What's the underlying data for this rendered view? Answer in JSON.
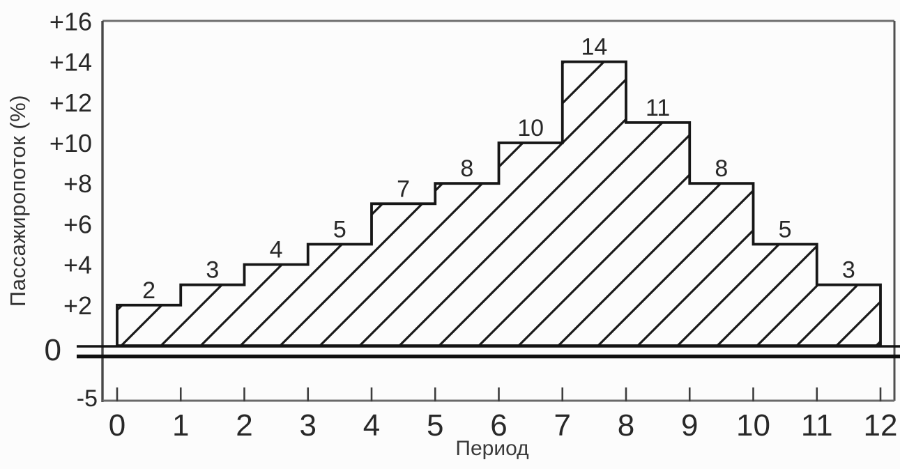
{
  "chart_data": {
    "type": "bar",
    "subtype": "step-histogram with diagonal hatch fill (monochrome scanned figure)",
    "xlabel": "Период",
    "ylabel": "Пассажиропоток (%)",
    "xlim": [
      0,
      12
    ],
    "ylim": [
      -5,
      16
    ],
    "grid": false,
    "legend": false,
    "ink_color": "#1a1a1a",
    "background_color": "#fcfcfc",
    "x_axis": {
      "ticks": [
        "0",
        "1",
        "2",
        "3",
        "4",
        "5",
        "6",
        "7",
        "8",
        "9",
        "10",
        "11",
        "12"
      ]
    },
    "y_axis": {
      "ticks": [
        {
          "label": "+16",
          "value": 16
        },
        {
          "label": "+14",
          "value": 14
        },
        {
          "label": "+12",
          "value": 12
        },
        {
          "label": "+10",
          "value": 10
        },
        {
          "label": "+8",
          "value": 8
        },
        {
          "label": "+6",
          "value": 6
        },
        {
          "label": "+4",
          "value": 4
        },
        {
          "label": "+2",
          "value": 2
        },
        {
          "label": "0",
          "value": 0
        },
        {
          "label": "-5",
          "value": -5
        }
      ]
    },
    "bars": [
      {
        "x_start": 0,
        "x_end": 1,
        "value": 2
      },
      {
        "x_start": 1,
        "x_end": 2,
        "value": 3
      },
      {
        "x_start": 2,
        "x_end": 3,
        "value": 4
      },
      {
        "x_start": 3,
        "x_end": 4,
        "value": 5
      },
      {
        "x_start": 4,
        "x_end": 5,
        "value": 7
      },
      {
        "x_start": 5,
        "x_end": 6,
        "value": 8
      },
      {
        "x_start": 6,
        "x_end": 7,
        "value": 10
      },
      {
        "x_start": 7,
        "x_end": 8,
        "value": 14
      },
      {
        "x_start": 8,
        "x_end": 9,
        "value": 11
      },
      {
        "x_start": 9,
        "x_end": 10,
        "value": 8
      },
      {
        "x_start": 10,
        "x_end": 11,
        "value": 5
      },
      {
        "x_start": 11,
        "x_end": 12,
        "value": 3
      }
    ],
    "bar_value_labels": [
      "2",
      "3",
      "4",
      "5",
      "7",
      "8",
      "10",
      "14",
      "11",
      "8",
      "5",
      "3"
    ]
  }
}
